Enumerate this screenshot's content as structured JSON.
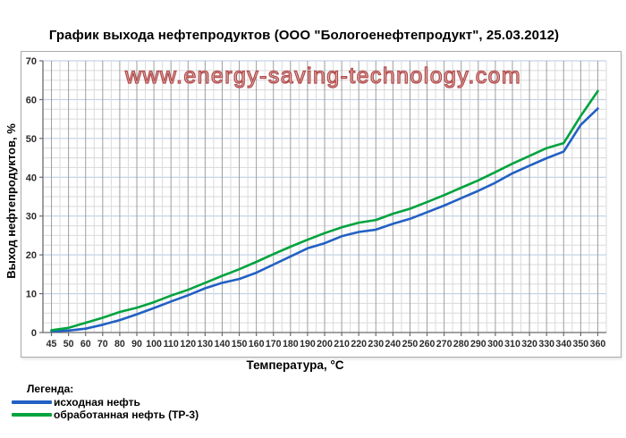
{
  "page": {
    "title": "График выхода нефтепродуктов (ООО \"Бологоенефтепродукт\", 25.03.2012)"
  },
  "watermark": {
    "text": "www.energy-saving-technology.com",
    "color": "#b24a4a"
  },
  "axes": {
    "x_title": "Температура, °С",
    "y_title": "Выход нефтепродуктов,  %"
  },
  "legend": {
    "heading": "Легенда:",
    "items": [
      {
        "label": "исходная нефть",
        "color": "#2260c4"
      },
      {
        "label": "обработанная нефть (ТР-3)",
        "color": "#00a33e"
      }
    ]
  },
  "chart_data": {
    "type": "line",
    "title": "График выхода нефтепродуктов (ООО \"Бологоенефтепродукт\", 25.03.2012)",
    "xlabel": "Температура, °С",
    "ylabel": "Выход нефтепродуктов, %",
    "categories": [
      45,
      50,
      60,
      70,
      80,
      90,
      100,
      110,
      120,
      130,
      140,
      150,
      160,
      170,
      180,
      190,
      200,
      210,
      220,
      230,
      240,
      250,
      260,
      270,
      280,
      290,
      300,
      310,
      320,
      330,
      340,
      350,
      360
    ],
    "series": [
      {
        "name": "исходная нефть",
        "color": "#2260c4",
        "values": [
          0.3,
          0.5,
          1.0,
          2.0,
          3.2,
          4.7,
          6.3,
          8.0,
          9.6,
          11.4,
          12.8,
          13.8,
          15.4,
          17.5,
          19.6,
          21.7,
          23.0,
          24.8,
          25.9,
          26.5,
          28.0,
          29.3,
          31.0,
          32.7,
          34.6,
          36.5,
          38.6,
          41.0,
          43.0,
          44.9,
          46.6,
          53.5,
          57.7
        ]
      },
      {
        "name": "обработанная нефть (ТР-3)",
        "color": "#00a33e",
        "values": [
          0.6,
          1.2,
          2.5,
          3.8,
          5.3,
          6.4,
          7.8,
          9.5,
          11.0,
          12.8,
          14.6,
          16.3,
          18.2,
          20.2,
          22.1,
          23.9,
          25.6,
          27.1,
          28.3,
          29.0,
          30.6,
          31.9,
          33.6,
          35.4,
          37.3,
          39.2,
          41.3,
          43.5,
          45.5,
          47.5,
          48.8,
          55.8,
          62.2
        ]
      }
    ],
    "ylim": [
      0,
      70
    ],
    "y_ticks": [
      0,
      10,
      20,
      30,
      40,
      50,
      60,
      70
    ],
    "y_minor_step": 2.5,
    "grid": {
      "on": true,
      "minor": "#dadada",
      "v_major": "#9e9e9e",
      "h_major": "#b7c9e3",
      "axis": "#6b6b6b"
    },
    "legend_position": "bottom-left-outside"
  }
}
